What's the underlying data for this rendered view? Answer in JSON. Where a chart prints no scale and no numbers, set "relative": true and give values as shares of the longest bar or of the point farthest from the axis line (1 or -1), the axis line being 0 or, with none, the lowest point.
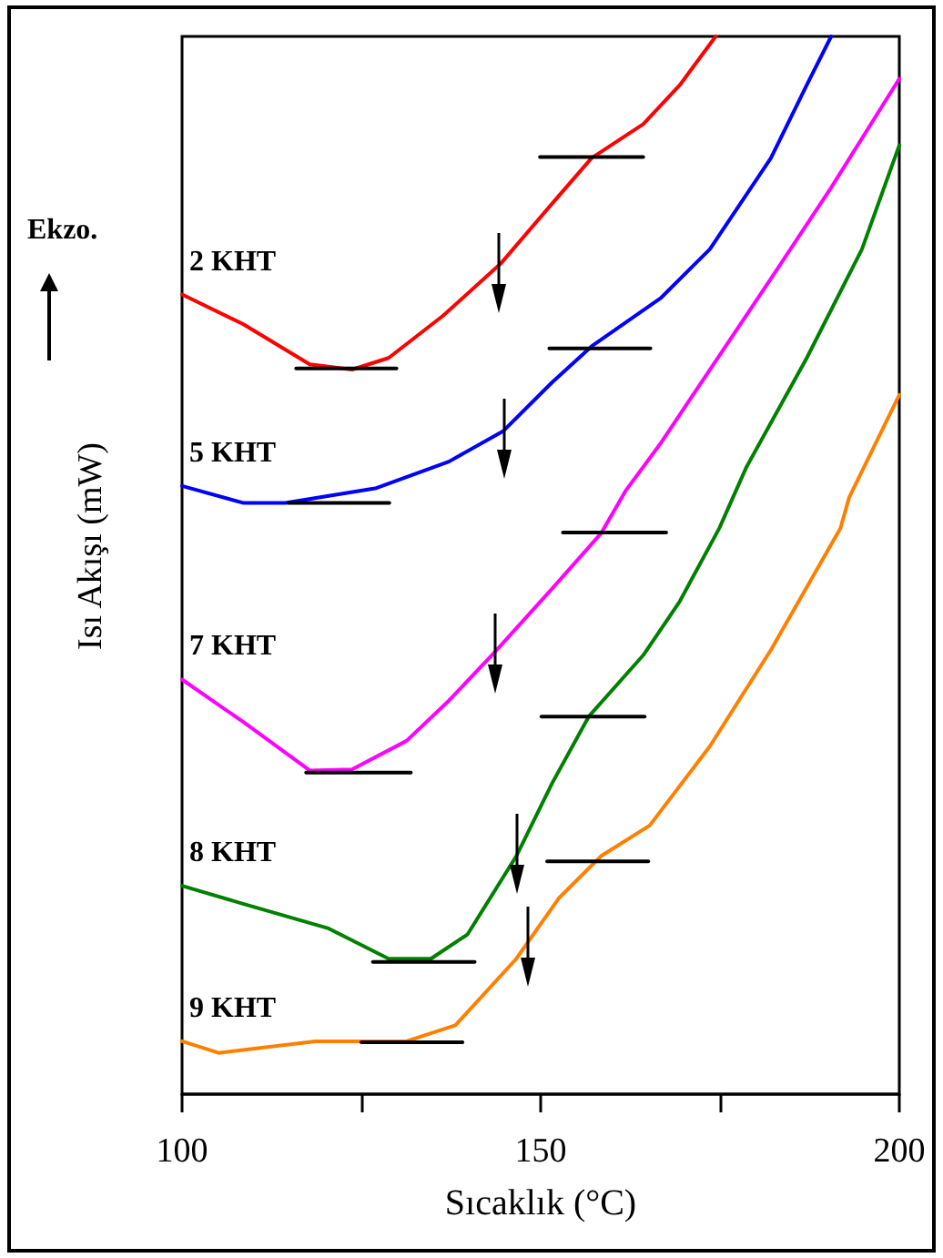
{
  "chart_data": {
    "type": "line",
    "xlabel": "Sıcaklık (°C)",
    "ylabel": "Isı Akışı (mW)",
    "annotations": [
      "Ekzo."
    ],
    "relative": true,
    "xlim": [
      100,
      200
    ],
    "xticks": [
      100,
      {
        "value": 125,
        "label": null
      },
      150,
      {
        "value": 175,
        "label": null
      },
      200
    ],
    "tick_labels": "x",
    "grid": false,
    "legend": false,
    "marker": "none",
    "series": [
      {
        "name": "2 KHT",
        "color": "#ff0000",
        "x": [
          100,
          108.5,
          117.8,
          123.7,
          128.8,
          136.4,
          144.4,
          151.6,
          157.1,
          164.3,
          169.4,
          174.4
        ],
        "values": [
          0.756,
          0.728,
          0.69,
          0.685,
          0.696,
          0.736,
          0.785,
          0.842,
          0.885,
          0.917,
          0.954,
          1.0
        ]
      },
      {
        "name": "5 KHT",
        "color": "#0000ff",
        "x": [
          100,
          108.5,
          114.4,
          127.1,
          137.2,
          144.8,
          151.6,
          157.1,
          166.8,
          173.6,
          182.1,
          187.1,
          190.5
        ],
        "values": [
          0.575,
          0.559,
          0.559,
          0.573,
          0.598,
          0.627,
          0.673,
          0.707,
          0.753,
          0.799,
          0.885,
          0.954,
          1.0
        ]
      },
      {
        "name": "7 KHT",
        "color": "#ff00ff",
        "x": [
          100,
          108.5,
          117.8,
          123.7,
          131.3,
          137.2,
          143.6,
          151.6,
          158.4,
          161.8,
          166.8,
          173.6,
          182.1,
          190.5,
          200
        ],
        "values": [
          0.392,
          0.352,
          0.306,
          0.307,
          0.334,
          0.372,
          0.418,
          0.478,
          0.53,
          0.57,
          0.616,
          0.685,
          0.771,
          0.857,
          0.96
        ]
      },
      {
        "name": "8 KHT",
        "color": "#008000",
        "x": [
          100,
          108.5,
          120.3,
          128.8,
          134.7,
          139.8,
          146.6,
          151.6,
          156.7,
          164.3,
          169.4,
          174.9,
          178.7,
          187.1,
          194.8,
          200
        ],
        "values": [
          0.197,
          0.18,
          0.157,
          0.128,
          0.128,
          0.151,
          0.225,
          0.294,
          0.357,
          0.415,
          0.466,
          0.535,
          0.593,
          0.696,
          0.799,
          0.897
        ]
      },
      {
        "name": "9 KHT",
        "color": "#ff8000",
        "x": [
          100,
          105.1,
          118.6,
          131.3,
          138.1,
          146.6,
          152.5,
          158.4,
          165.2,
          173.6,
          182.1,
          191.8,
          193.0,
          200
        ],
        "values": [
          0.05,
          0.039,
          0.05,
          0.05,
          0.065,
          0.128,
          0.185,
          0.225,
          0.254,
          0.329,
          0.42,
          0.535,
          0.564,
          0.661
        ]
      },
      {
        "color": "#000000",
        "x": [
          115.9,
          129.9
        ],
        "values": [
          0.686,
          0.686
        ]
      },
      {
        "color": "#000000",
        "x": [
          149.9,
          164.3
        ],
        "values": [
          0.886,
          0.886
        ]
      },
      {
        "color": "#000000",
        "x": [
          114.8,
          128.9
        ],
        "values": [
          0.559,
          0.559
        ]
      },
      {
        "color": "#000000",
        "x": [
          151.2,
          165.3
        ],
        "values": [
          0.705,
          0.705
        ]
      },
      {
        "color": "#000000",
        "x": [
          117.3,
          131.9
        ],
        "values": [
          0.304,
          0.304
        ]
      },
      {
        "color": "#000000",
        "x": [
          153.1,
          167.5
        ],
        "values": [
          0.531,
          0.531
        ]
      },
      {
        "color": "#000000",
        "x": [
          126.6,
          140.8
        ],
        "values": [
          0.125,
          0.125
        ]
      },
      {
        "color": "#000000",
        "x": [
          150.1,
          164.5
        ],
        "values": [
          0.357,
          0.357
        ]
      },
      {
        "color": "#000000",
        "x": [
          125.0,
          139.1
        ],
        "values": [
          0.049,
          0.049
        ]
      },
      {
        "color": "#000000",
        "x": [
          150.9,
          165.0
        ],
        "values": [
          0.22,
          0.22
        ]
      }
    ]
  }
}
